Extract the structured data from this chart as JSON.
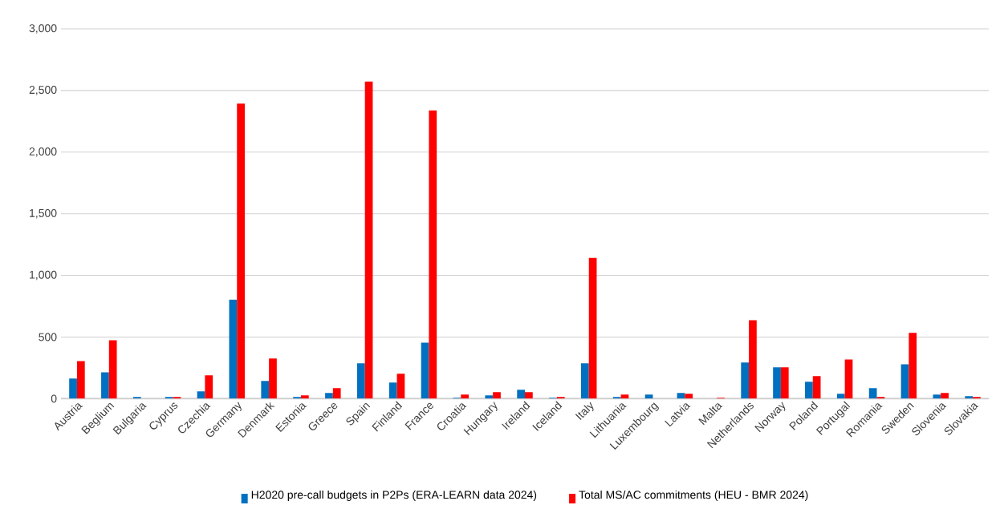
{
  "chart_data": {
    "type": "bar",
    "categories": [
      "Austria",
      "Beglium",
      "Bulgaria",
      "Cyprus",
      "Czechia",
      "Germany",
      "Denmark",
      "Estonia",
      "Greece",
      "Spain",
      "Finland",
      "France",
      "Croatia",
      "Hungary",
      "Ireland",
      "Iceland",
      "Italy",
      "Lithuania",
      "Luxembourg",
      "Latvia",
      "Malta",
      "Netherlands",
      "Norway",
      "Poland",
      "Portugal",
      "Romania",
      "Sweden",
      "Slovenia",
      "Slovakia"
    ],
    "series": [
      {
        "name": "H2020 pre-call budgets in P2Ps (ERA-LEARN data 2024)",
        "color": "#0070c0",
        "values": [
          163,
          213,
          13,
          13,
          59,
          803,
          143,
          13,
          46,
          286,
          130,
          454,
          7,
          26,
          72,
          7,
          286,
          13,
          33,
          46,
          0,
          293,
          254,
          137,
          39,
          85,
          278,
          33,
          20
        ]
      },
      {
        "name": "Total MS/AC commitments (HEU - BMR 2024)",
        "color": "#ff0000",
        "values": [
          304,
          473,
          0,
          13,
          189,
          2394,
          326,
          26,
          85,
          2573,
          202,
          2339,
          33,
          52,
          52,
          13,
          1141,
          33,
          0,
          39,
          7,
          636,
          254,
          182,
          317,
          13,
          534,
          46,
          13
        ]
      }
    ],
    "ylim": [
      0,
      3000
    ],
    "yticks": [
      {
        "value": 0,
        "label": "0"
      },
      {
        "value": 500,
        "label": "500"
      },
      {
        "value": 1000,
        "label": "1,000"
      },
      {
        "value": 1500,
        "label": "1,500"
      },
      {
        "value": 2000,
        "label": "2,000"
      },
      {
        "value": 2500,
        "label": "2,500"
      },
      {
        "value": 3000,
        "label": "3,000"
      }
    ],
    "grid": "y",
    "legend": "bottom"
  }
}
